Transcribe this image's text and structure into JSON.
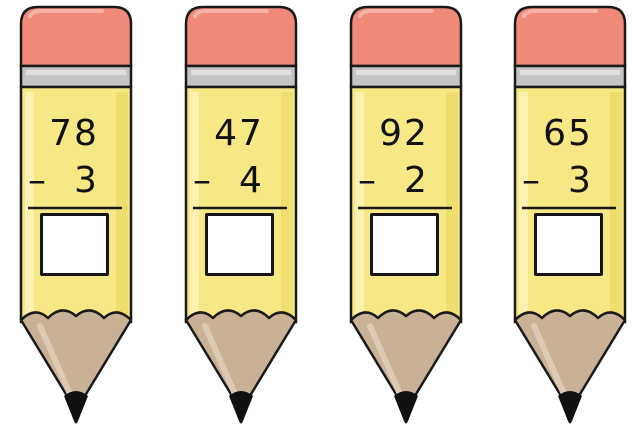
{
  "problems": [
    {
      "top": "78",
      "operator": "–",
      "bottom": "3"
    },
    {
      "top": "47",
      "operator": "–",
      "bottom": "4"
    },
    {
      "top": "92",
      "operator": "–",
      "bottom": "2"
    },
    {
      "top": "65",
      "operator": "–",
      "bottom": "3"
    }
  ],
  "colors": {
    "eraser": "#ef8a78",
    "ferrule": "#c4c4c4",
    "body": "#f7e886",
    "wood": "#c9b196",
    "tip": "#111111"
  },
  "icons": [
    "pencil-icon"
  ]
}
